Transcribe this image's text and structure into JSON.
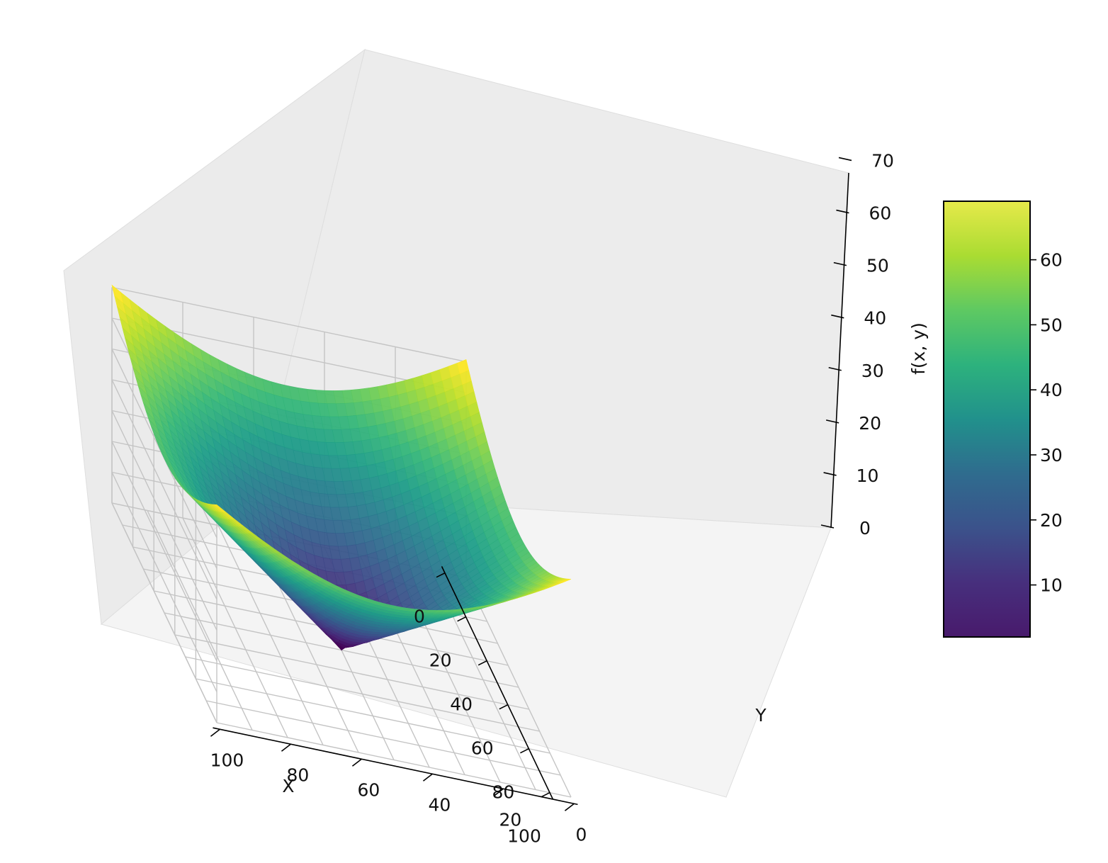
{
  "chart_data": {
    "type": "surface",
    "function": "f(x, y)",
    "xlabel": "X",
    "ylabel": "Y",
    "zlabel": "f(x, y)",
    "xlim": [
      0,
      100
    ],
    "ylim": [
      0,
      100
    ],
    "zlim": [
      0,
      70
    ],
    "x_ticks": [
      "0",
      "20",
      "40",
      "60",
      "80",
      "100"
    ],
    "y_ticks": [
      "0",
      "20",
      "40",
      "60",
      "80",
      "100"
    ],
    "z_ticks": [
      "0",
      "10",
      "20",
      "30",
      "40",
      "50",
      "60",
      "70"
    ],
    "colorbar_ticks": [
      "10",
      "20",
      "30",
      "40",
      "50",
      "60"
    ],
    "colorbar_range": [
      2,
      69
    ],
    "colormap": "viridis",
    "grid": true,
    "surface_samples": {
      "x": [
        0,
        25,
        50,
        75,
        100
      ],
      "y": [
        0,
        25,
        50,
        75,
        100
      ],
      "z": [
        [
          70.7,
          55.9,
          50.0,
          55.9,
          70.7
        ],
        [
          55.9,
          35.4,
          25.0,
          35.4,
          55.9
        ],
        [
          50.0,
          25.0,
          0.0,
          25.0,
          50.0
        ],
        [
          55.9,
          35.4,
          25.0,
          35.4,
          55.9
        ],
        [
          70.7,
          55.9,
          50.0,
          55.9,
          70.7
        ]
      ]
    }
  }
}
